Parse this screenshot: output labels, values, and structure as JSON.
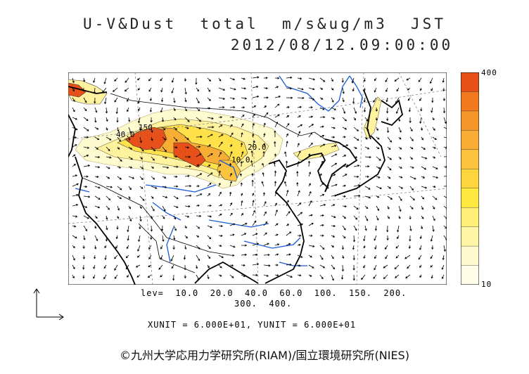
{
  "title_line1": "U-V&Dust  total  m/s&ug/m3  JST",
  "title_line2": "2012/08/12.09:00:00",
  "legend": {
    "max_label": "400",
    "min_label": "10",
    "colors": [
      "#e8501a",
      "#f0781e",
      "#f5962a",
      "#f8ad35",
      "#fbc33e",
      "#fdd63f",
      "#ffe840",
      "#fff07a",
      "#fff5a6",
      "#fffad0",
      "#fffde8"
    ]
  },
  "levels_line1": "lev=  10.0  20.0  40.0  60.0  100.  150.  200.",
  "levels_line2": "300.  400.",
  "unit_text": "XUNIT  =  6.000E+01,  YUNIT  =  6.000E+01",
  "contour_labels": [
    "150",
    "40.0",
    "20.0",
    "10.0"
  ],
  "copyright": "©九州大学応用力学研究所(RIAM)/国立環境研究所(NIES)"
}
